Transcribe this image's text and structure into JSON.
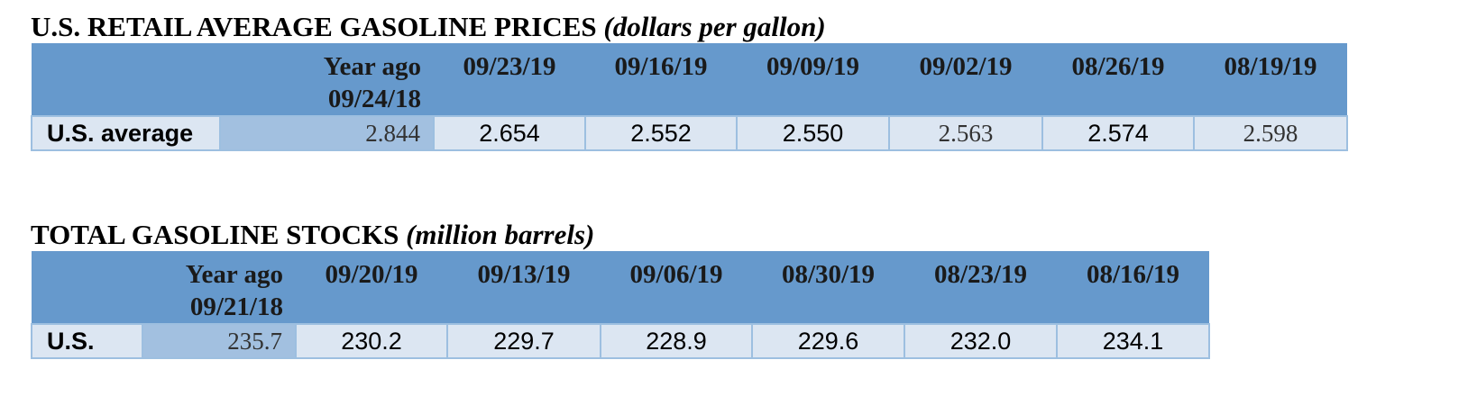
{
  "prices": {
    "title": "U.S. RETAIL AVERAGE GASOLINE PRICES",
    "unit": "(dollars per gallon)",
    "year_ago_label": "Year ago",
    "year_ago_date": "09/24/18",
    "dates": [
      "09/23/19",
      "09/16/19",
      "09/09/19",
      "09/02/19",
      "08/26/19",
      "08/19/19"
    ],
    "row_label": "U.S. average",
    "year_ago_value": "2.844",
    "values": [
      "2.654",
      "2.552",
      "2.550",
      "2.563",
      "2.574",
      "2.598"
    ]
  },
  "stocks": {
    "title": "TOTAL GASOLINE STOCKS",
    "unit": "(million barrels)",
    "year_ago_label": "Year ago",
    "year_ago_date": "09/21/18",
    "dates": [
      "09/20/19",
      "09/13/19",
      "09/06/19",
      "08/30/19",
      "08/23/19",
      "08/16/19"
    ],
    "row_label": "U.S.",
    "year_ago_value": "235.7",
    "values": [
      "230.2",
      "229.7",
      "228.9",
      "229.6",
      "232.0",
      "234.1"
    ]
  }
}
